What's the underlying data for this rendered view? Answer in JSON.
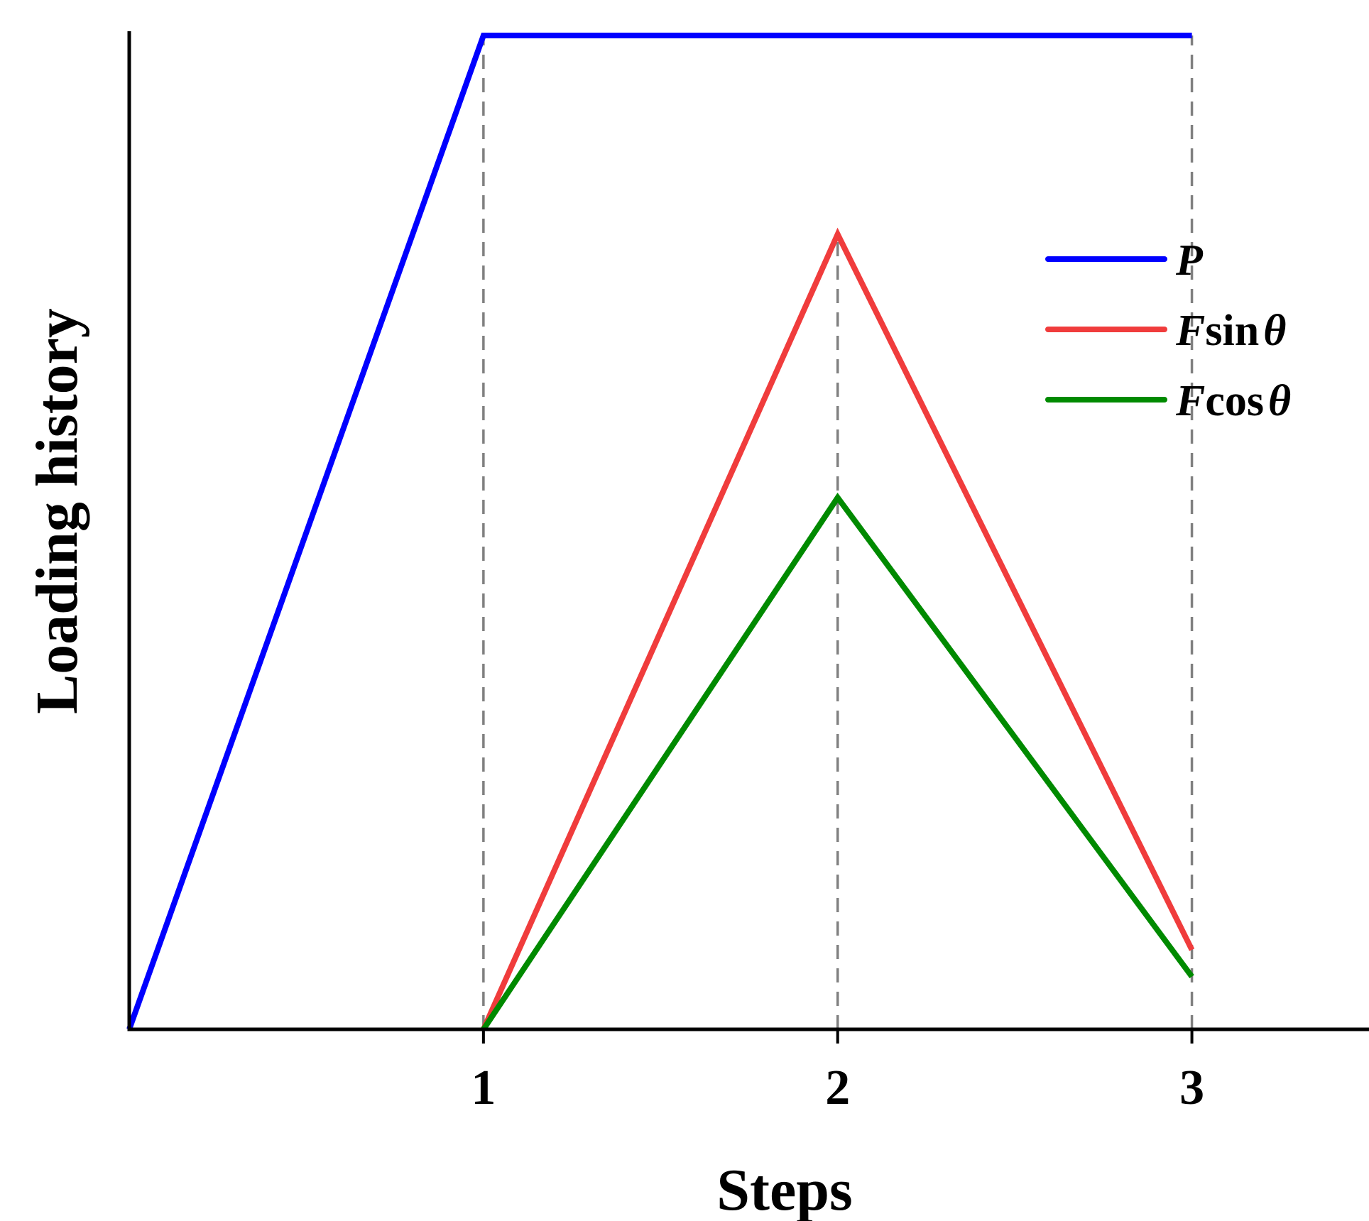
{
  "chart_data": {
    "type": "line",
    "title": "",
    "xlabel": "Steps",
    "ylabel": "Loading history",
    "xlim": [
      0,
      3.5
    ],
    "ylim": [
      0,
      1
    ],
    "x_ticks": [
      {
        "value": 1,
        "label": "1"
      },
      {
        "value": 2,
        "label": "2"
      },
      {
        "value": 3,
        "label": "3"
      }
    ],
    "y_ticks": [],
    "guides_x": [
      1,
      2,
      3
    ],
    "grid": false,
    "legend_position": "top-right",
    "series": [
      {
        "name": "P",
        "name_main": "P",
        "name_suffix": "",
        "name_symbol": "",
        "color": "#0000ff",
        "points": [
          [
            0,
            0
          ],
          [
            1,
            1
          ],
          [
            3,
            1
          ]
        ]
      },
      {
        "name": "Fsinθ",
        "name_main": "F",
        "name_suffix": "sin",
        "name_symbol": "θ",
        "color": "#f03c3c",
        "points": [
          [
            1,
            0
          ],
          [
            2,
            0.8
          ],
          [
            3,
            0.08
          ]
        ]
      },
      {
        "name": "Fcosθ",
        "name_main": "F",
        "name_suffix": "cos",
        "name_symbol": "θ",
        "color": "#008a00",
        "points": [
          [
            1,
            0
          ],
          [
            2,
            0.535
          ],
          [
            3,
            0.053
          ]
        ]
      }
    ]
  }
}
